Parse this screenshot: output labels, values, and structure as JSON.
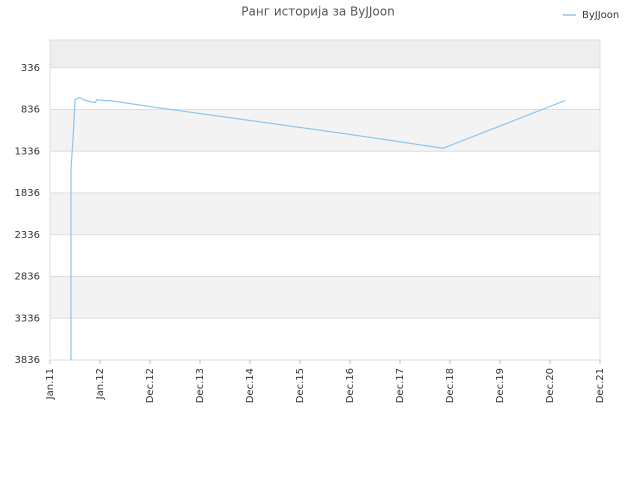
{
  "chart_data": {
    "type": "line",
    "title": "Ранг историја за ByJJoon",
    "x": [
      2011.42,
      2011.42,
      2011.46,
      2011.5,
      2011.54,
      2011.6,
      2011.66,
      2011.8,
      2011.9,
      2011.94,
      2012.1,
      2012.2,
      2013.0,
      2014.0,
      2015.0,
      2016.0,
      2017.0,
      2018.86,
      2021.3
    ],
    "series": [
      {
        "name": "ByJJoon",
        "color": "#8cc6f0",
        "values": [
          3836,
          1550,
          1193,
          717,
          705,
          693,
          717,
          741,
          753,
          717,
          729,
          729,
          800,
          884,
          967,
          1050,
          1134,
          1300,
          729
        ]
      }
    ],
    "xlim": [
      2011,
      2022
    ],
    "xticks": [
      {
        "value": 2011,
        "label": "Jan.11"
      },
      {
        "value": 2012,
        "label": "Jan.12"
      },
      {
        "value": 2013,
        "label": "Dec.12"
      },
      {
        "value": 2014,
        "label": "Dec.13"
      },
      {
        "value": 2015,
        "label": "Dec.14"
      },
      {
        "value": 2016,
        "label": "Dec.15"
      },
      {
        "value": 2017,
        "label": "Dec.16"
      },
      {
        "value": 2018,
        "label": "Dec.17"
      },
      {
        "value": 2019,
        "label": "Dec.18"
      },
      {
        "value": 2020,
        "label": "Dec.19"
      },
      {
        "value": 2021,
        "label": "Dec.20"
      },
      {
        "value": 2022,
        "label": "Dec.21"
      }
    ],
    "ylim": [
      3836,
      3
    ],
    "yticks": [
      336,
      836,
      1336,
      1836,
      2336,
      2836,
      3336,
      3836
    ],
    "grid": true,
    "legend": "top-right"
  }
}
